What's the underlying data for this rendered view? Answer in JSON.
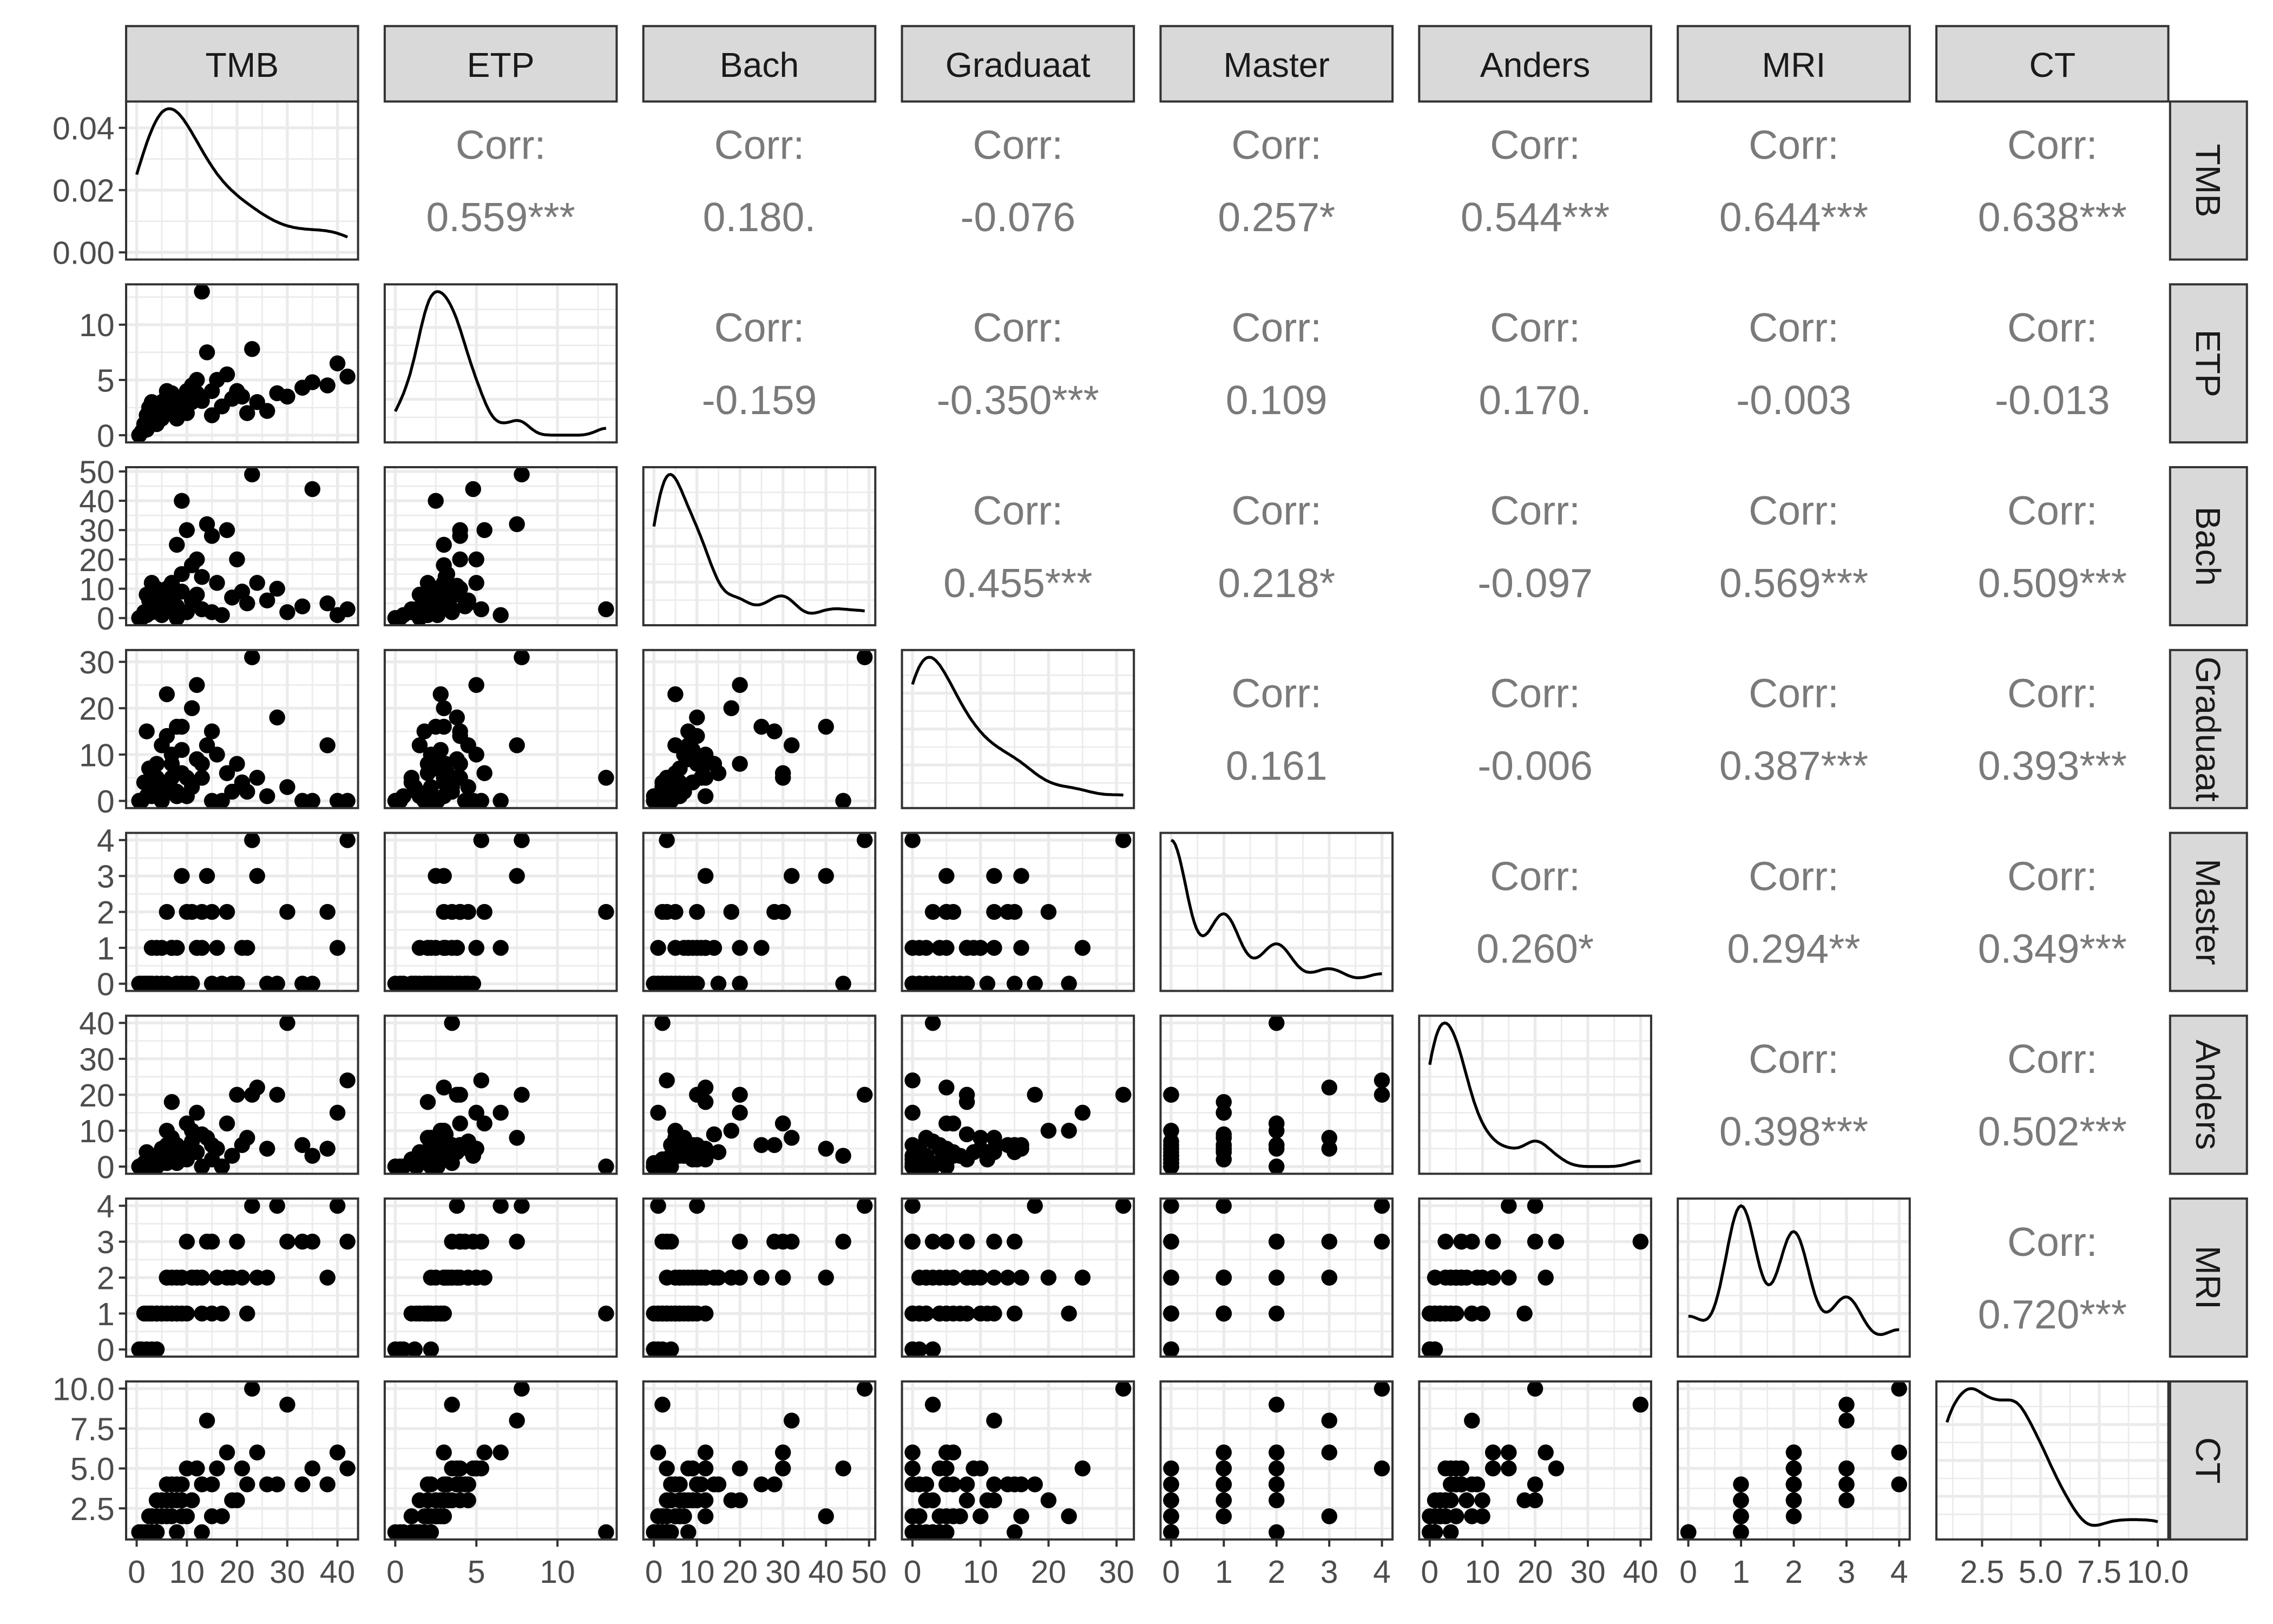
{
  "chart_data": {
    "type": "scatter-matrix",
    "variables": [
      "TMB",
      "ETP",
      "Bach",
      "Graduaat",
      "Master",
      "Anders",
      "MRI",
      "CT"
    ],
    "axes": {
      "TMB": {
        "range": [
          0,
          42
        ],
        "ticks": [
          0,
          10,
          20,
          30,
          40
        ],
        "tick_labels": [
          "0",
          "10",
          "20",
          "30",
          "40"
        ]
      },
      "ETP": {
        "range": [
          0,
          13
        ],
        "ticks": [
          0,
          5,
          10
        ],
        "tick_labels": [
          "0",
          "5",
          "10"
        ]
      },
      "Bach": {
        "range": [
          0,
          49
        ],
        "ticks": [
          0,
          10,
          20,
          30,
          40,
          50
        ],
        "tick_labels": [
          "0",
          "10",
          "20",
          "30",
          "40",
          "50"
        ]
      },
      "Graduaat": {
        "range": [
          0,
          31
        ],
        "ticks": [
          0,
          10,
          20,
          30
        ],
        "tick_labels": [
          "0",
          "10",
          "20",
          "30"
        ]
      },
      "Master": {
        "range": [
          0,
          4
        ],
        "ticks": [
          0,
          1,
          2,
          3,
          4
        ],
        "tick_labels": [
          "0",
          "1",
          "2",
          "3",
          "4"
        ]
      },
      "Anders": {
        "range": [
          0,
          40
        ],
        "ticks": [
          0,
          10,
          20,
          30,
          40
        ],
        "tick_labels": [
          "0",
          "10",
          "20",
          "30",
          "40"
        ]
      },
      "MRI": {
        "range": [
          0,
          4
        ],
        "ticks": [
          0,
          1,
          2,
          3,
          4
        ],
        "tick_labels": [
          "0",
          "1",
          "2",
          "3",
          "4"
        ]
      },
      "CT": {
        "range": [
          1,
          10
        ],
        "ticks": [
          2.5,
          5,
          7.5,
          10
        ],
        "tick_labels": [
          "2.5",
          "5.0",
          "7.5",
          "10.0"
        ]
      }
    },
    "density_axis": {
      "ticks": [
        0,
        0.02,
        0.04
      ],
      "tick_labels": [
        "0.00",
        "0.02",
        "0.04"
      ]
    },
    "corr_label": "Corr:",
    "correlations": [
      [
        "",
        "0.559***",
        "0.180.",
        "-0.076",
        "0.257*",
        "0.544***",
        "0.644***",
        "0.638***"
      ],
      [
        "",
        "",
        "-0.159",
        "-0.350***",
        "0.109",
        "0.170.",
        "-0.003",
        "-0.013"
      ],
      [
        "",
        "",
        "",
        "0.455***",
        "0.218*",
        "-0.097",
        "0.569***",
        "0.509***"
      ],
      [
        "",
        "",
        "",
        "",
        "0.161",
        "-0.006",
        "0.387***",
        "0.393***"
      ],
      [
        "",
        "",
        "",
        "",
        "",
        "0.260*",
        "0.294**",
        "0.349***"
      ],
      [
        "",
        "",
        "",
        "",
        "",
        "",
        "0.398***",
        "0.502***"
      ],
      [
        "",
        "",
        "",
        "",
        "",
        "",
        "",
        "0.720***"
      ],
      [
        "",
        "",
        "",
        "",
        "",
        "",
        "",
        ""
      ]
    ],
    "observations": [
      [
        42,
        5.3,
        3,
        0,
        4,
        24,
        3,
        5
      ],
      [
        40,
        6.5,
        1,
        0,
        1,
        15,
        4,
        6
      ],
      [
        38,
        4.5,
        5,
        12,
        2,
        5,
        2,
        4
      ],
      [
        35,
        4.8,
        44,
        0,
        0,
        3,
        3,
        5
      ],
      [
        30,
        3.5,
        2,
        3,
        2,
        40,
        3,
        9
      ],
      [
        28,
        3.8,
        10,
        18,
        0,
        20,
        4,
        4
      ],
      [
        23,
        7.8,
        49,
        31,
        4,
        20,
        4,
        10
      ],
      [
        24,
        3,
        12,
        5,
        3,
        22,
        2,
        6
      ],
      [
        22,
        2,
        5,
        2,
        1,
        8,
        1,
        4
      ],
      [
        20,
        4,
        20,
        8,
        0,
        20,
        3,
        3
      ],
      [
        18,
        5.5,
        30,
        6,
        2,
        12,
        2,
        6
      ],
      [
        16,
        5,
        12,
        10,
        1,
        5,
        2,
        5
      ],
      [
        13,
        13,
        3,
        5,
        2,
        0,
        1,
        1
      ],
      [
        14,
        7.5,
        32,
        12,
        3,
        8,
        3,
        8
      ],
      [
        15,
        4,
        28,
        15,
        2,
        6,
        3,
        4
      ],
      [
        12,
        5,
        20,
        25,
        1,
        15,
        2,
        5
      ],
      [
        11,
        3,
        18,
        20,
        2,
        10,
        2,
        3
      ],
      [
        10,
        4,
        30,
        5,
        2,
        12,
        3,
        5
      ],
      [
        9,
        2.5,
        40,
        16,
        3,
        5,
        2,
        2
      ],
      [
        8,
        3,
        25,
        16,
        1,
        6,
        2,
        4
      ],
      [
        7,
        2,
        12,
        8,
        1,
        18,
        1,
        3
      ],
      [
        6,
        2.8,
        5,
        23,
        0,
        10,
        1,
        2
      ],
      [
        5,
        1.5,
        8,
        12,
        1,
        4,
        1,
        3
      ],
      [
        4,
        1,
        3,
        5,
        0,
        2,
        1,
        2
      ],
      [
        3,
        1.2,
        2,
        3,
        0,
        1,
        0,
        1
      ],
      [
        2,
        0.5,
        1,
        1,
        0,
        0,
        0,
        1
      ],
      [
        1,
        0.3,
        0,
        0,
        0,
        0,
        0,
        1
      ],
      [
        0.5,
        0,
        0,
        0,
        0,
        0,
        0,
        1
      ],
      [
        3,
        2,
        5,
        6,
        0,
        3,
        1,
        2
      ],
      [
        4,
        2.5,
        10,
        8,
        1,
        2,
        1,
        3
      ],
      [
        5,
        3,
        6,
        4,
        0,
        5,
        1,
        2
      ],
      [
        6,
        3.5,
        3,
        2,
        0,
        1,
        2,
        3
      ],
      [
        7,
        2.2,
        7,
        10,
        1,
        8,
        1,
        2
      ],
      [
        8,
        2,
        4,
        2,
        0,
        3,
        1,
        3
      ],
      [
        9,
        3.2,
        15,
        6,
        0,
        4,
        2,
        4
      ],
      [
        10,
        2,
        2,
        1,
        0,
        2,
        1,
        2
      ],
      [
        2,
        1.8,
        8,
        15,
        0,
        4,
        1,
        1
      ],
      [
        3,
        3,
        12,
        1,
        1,
        2,
        1,
        2
      ],
      [
        4,
        2.2,
        4,
        3,
        0,
        0,
        0,
        1
      ],
      [
        5,
        2,
        1,
        0,
        0,
        1,
        1,
        2
      ],
      [
        6,
        4,
        10,
        14,
        2,
        6,
        2,
        4
      ],
      [
        1.5,
        1,
        2,
        4,
        0,
        1,
        1,
        1
      ],
      [
        2.5,
        2.5,
        6,
        7,
        0,
        3,
        1,
        2
      ],
      [
        12,
        3.8,
        8,
        9,
        1,
        4,
        2,
        5
      ],
      [
        15,
        1.8,
        2,
        0,
        0,
        2,
        1,
        2
      ],
      [
        11,
        4.5,
        6,
        3,
        0,
        7,
        2,
        3
      ],
      [
        9,
        2.8,
        9,
        11,
        0,
        2,
        1,
        3
      ],
      [
        7,
        3.8,
        11,
        5,
        1,
        5,
        2,
        4
      ],
      [
        19,
        3.3,
        7,
        2,
        0,
        3,
        2,
        3
      ],
      [
        21,
        3.5,
        9,
        4,
        1,
        6,
        2,
        5
      ],
      [
        17,
        2.6,
        1,
        0,
        0,
        0,
        1,
        2
      ],
      [
        13,
        3.1,
        14,
        8,
        1,
        9,
        2,
        4
      ],
      [
        8,
        1.5,
        0,
        1,
        0,
        1,
        1,
        1
      ],
      [
        4,
        1.3,
        3,
        2,
        0,
        0,
        1,
        1
      ],
      [
        26,
        2.2,
        6,
        1,
        0,
        5,
        2,
        4
      ],
      [
        33,
        4.3,
        4,
        0,
        0,
        6,
        3,
        4
      ]
    ],
    "grid": true,
    "colors": {
      "points": "#000000",
      "strip_fill": "#d9d9d9",
      "grid": "#ebebeb",
      "corr_text": "#7a7a7a"
    }
  }
}
